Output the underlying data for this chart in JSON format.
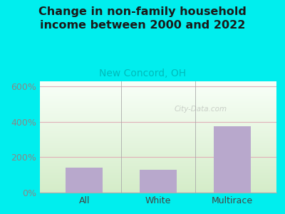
{
  "categories": [
    "All",
    "White",
    "Multirace"
  ],
  "values": [
    140,
    130,
    375
  ],
  "bar_color": "#b8a8cc",
  "title": "Change in non-family household\nincome between 2000 and 2022",
  "subtitle": "New Concord, OH",
  "title_color": "#1a1a1a",
  "subtitle_color": "#00bbbb",
  "background_color": "#00eeee",
  "plot_bg_top": "#f8fff8",
  "plot_bg_bottom": "#d4ecc8",
  "ytick_color": "#888888",
  "ytick_labels": [
    "0%",
    "200%",
    "400%",
    "600%"
  ],
  "ytick_values": [
    0,
    200,
    400,
    600
  ],
  "ylim": [
    0,
    630
  ],
  "grid_color": "#e0b0b8",
  "watermark": "City-Data.com",
  "title_fontsize": 11.5,
  "subtitle_fontsize": 10,
  "tick_fontsize": 9,
  "bar_width": 0.5
}
